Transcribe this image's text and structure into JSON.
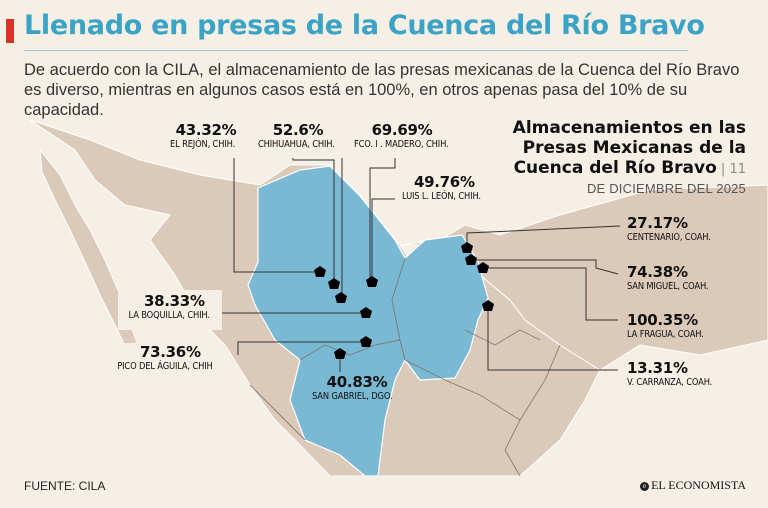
{
  "header": {
    "title": "Llenado en presas de la Cuenca del Río Bravo",
    "intro": "De acuerdo con la CILA, el almacenamiento de las presas mexicanas de la Cuenca del Río Bravo es diverso, mientras en algunos casos está en 100%, en otros apenas pasa del 10% de su capacidad."
  },
  "map_title": {
    "line1": "Almacenamientos en las",
    "line2": "Presas Mexicanas de la",
    "line3": "Cuenca del Río Bravo",
    "day": "11",
    "date": "DE DICIEMBRE DEL 2025"
  },
  "colors": {
    "title": "#3aa3c6",
    "accent_bar": "#d8332b",
    "basin": "#79b9d4",
    "land": "#dbc9b9",
    "sea": "#f6efe6"
  },
  "dams": [
    {
      "pct": "43.32%",
      "name": "EL REJÓN, CHIH."
    },
    {
      "pct": "52.6%",
      "name": "CHIHUAHUA, CHIH."
    },
    {
      "pct": "69.69%",
      "name": "FCO. I . MADERO, CHIH."
    },
    {
      "pct": "49.76%",
      "name": "LUIS L. LEÓN, CHIH."
    },
    {
      "pct": "38.33%",
      "name": "LA BOQUILLA, CHIH."
    },
    {
      "pct": "73.36%",
      "name": "PICO DEL ÁGUILA, CHIH"
    },
    {
      "pct": "40.83%",
      "name": "SAN GABRIEL, DGO."
    },
    {
      "pct": "27.17%",
      "name": "CENTENARIO, COAH."
    },
    {
      "pct": "74.38%",
      "name": "SAN MIGUEL, COAH."
    },
    {
      "pct": "100.35%",
      "name": "LA FRAGUA, COAH."
    },
    {
      "pct": "13.31%",
      "name": "V. CARRANZA, COAH."
    }
  ],
  "footer": {
    "source": "FUENTE: CILA",
    "logo": "EL ECONOMISTA",
    "logo_mark": "e"
  }
}
